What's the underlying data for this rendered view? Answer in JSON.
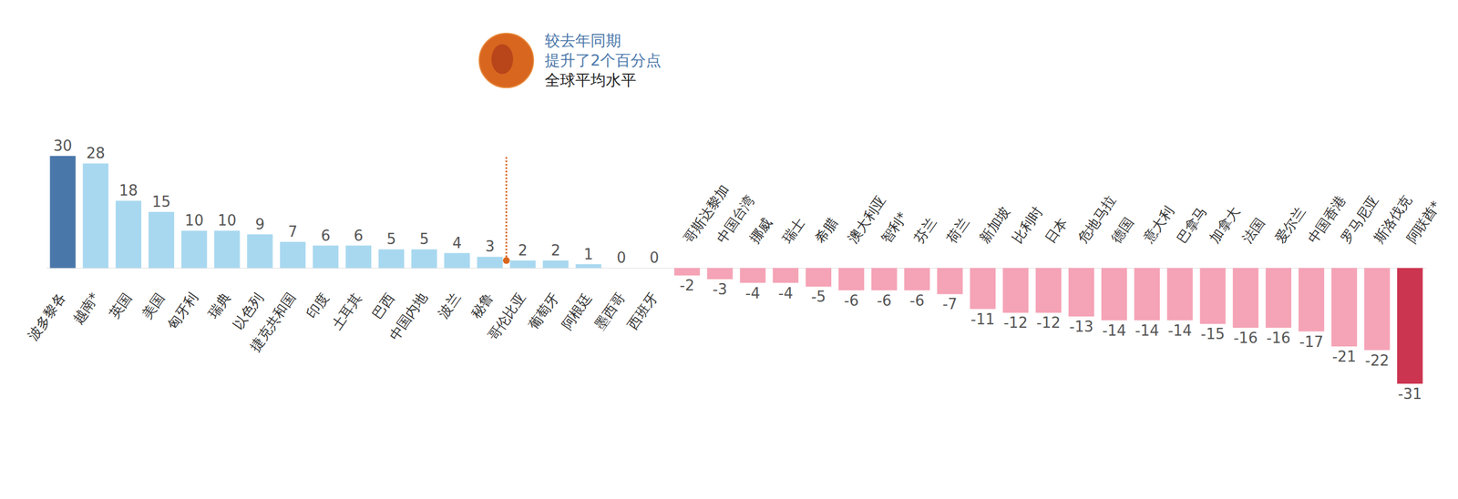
{
  "chart_data": {
    "type": "bar",
    "categories": [
      "波多黎各",
      "越南*",
      "英国",
      "美国",
      "匈牙利",
      "瑞典",
      "以色列",
      "捷克共和国",
      "印度",
      "土耳其",
      "巴西",
      "中国内地",
      "波兰",
      "秘鲁",
      "哥伦比亚",
      "葡萄牙",
      "阿根廷",
      "墨西哥",
      "西班牙",
      "哥斯达黎加",
      "中国台湾",
      "挪威",
      "瑞士",
      "希腊",
      "澳大利亚",
      "智利*",
      "芬兰",
      "荷兰",
      "新加坡",
      "比利时",
      "日本",
      "危地马拉",
      "德国",
      "意大利",
      "巴拿马",
      "加拿大",
      "法国",
      "爱尔兰",
      "中国香港",
      "罗马尼亚",
      "斯洛伐克",
      "阿联酋*"
    ],
    "values": [
      30,
      28,
      18,
      15,
      10,
      10,
      9,
      7,
      6,
      6,
      5,
      5,
      4,
      3,
      2,
      2,
      1,
      0,
      0,
      -2,
      -3,
      -4,
      -4,
      -5,
      -6,
      -6,
      -6,
      -7,
      -11,
      -12,
      -12,
      -13,
      -14,
      -14,
      -14,
      -15,
      -16,
      -16,
      -17,
      -21,
      -22,
      -31
    ],
    "colors": [
      "#4a77aa",
      "#a8d8f0",
      "#a8d8f0",
      "#a8d8f0",
      "#a8d8f0",
      "#a8d8f0",
      "#a8d8f0",
      "#a8d8f0",
      "#a8d8f0",
      "#a8d8f0",
      "#a8d8f0",
      "#a8d8f0",
      "#a8d8f0",
      "#a8d8f0",
      "#a8d8f0",
      "#a8d8f0",
      "#a8d8f0",
      "#a8d8f0",
      "#a8d8f0",
      "#f5a3b6",
      "#f5a3b6",
      "#f5a3b6",
      "#f5a3b6",
      "#f5a3b6",
      "#f5a3b6",
      "#f5a3b6",
      "#f5a3b6",
      "#f5a3b6",
      "#f5a3b6",
      "#f5a3b6",
      "#f5a3b6",
      "#f5a3b6",
      "#f5a3b6",
      "#f5a3b6",
      "#f5a3b6",
      "#f5a3b6",
      "#f5a3b6",
      "#f5a3b6",
      "#f5a3b6",
      "#f5a3b6",
      "#f5a3b6",
      "#cc3550"
    ],
    "ylim": [
      -31,
      30
    ],
    "data_labels": true,
    "tick_labels": false,
    "grid": false,
    "annotation": {
      "y": 2,
      "lines": [
        "较去年同期",
        "提升了2个百分点",
        "全球平均水平"
      ]
    }
  }
}
